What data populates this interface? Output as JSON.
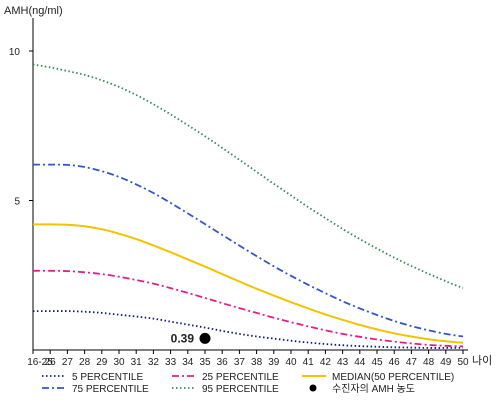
{
  "chart_data": {
    "type": "line",
    "ylabel": "AMH(ng/ml)",
    "xlabel": "나이",
    "x": [
      "16-25",
      "26",
      "27",
      "28",
      "29",
      "30",
      "31",
      "32",
      "33",
      "34",
      "35",
      "36",
      "37",
      "38",
      "39",
      "40",
      "41",
      "42",
      "43",
      "44",
      "45",
      "46",
      "47",
      "48",
      "49",
      "50"
    ],
    "y_ticks": [
      "5",
      "10"
    ],
    "ylim": [
      0,
      11
    ],
    "grid": false,
    "legend_position": "bottom",
    "series": [
      {
        "key": "p5",
        "name": "5 PERCENTILE",
        "color": "#0a1a7a",
        "dash": "dot",
        "values": [
          1.3,
          1.3,
          1.3,
          1.28,
          1.24,
          1.18,
          1.12,
          1.05,
          0.95,
          0.85,
          0.75,
          0.64,
          0.54,
          0.45,
          0.38,
          0.31,
          0.25,
          0.2,
          0.16,
          0.13,
          0.11,
          0.09,
          0.08,
          0.07,
          0.07,
          0.07
        ]
      },
      {
        "key": "p25",
        "name": "25 PERCENTILE",
        "color": "#e0208a",
        "dash": "dashdot",
        "values": [
          2.65,
          2.65,
          2.64,
          2.6,
          2.54,
          2.45,
          2.34,
          2.22,
          2.07,
          1.91,
          1.74,
          1.57,
          1.4,
          1.24,
          1.08,
          0.93,
          0.79,
          0.66,
          0.54,
          0.44,
          0.35,
          0.28,
          0.22,
          0.17,
          0.14,
          0.12
        ]
      },
      {
        "key": "p50",
        "name": "MEDIAN(50 PERCENTILE)",
        "color": "#f2c400",
        "dash": "solid",
        "values": [
          4.2,
          4.2,
          4.19,
          4.14,
          4.04,
          3.89,
          3.71,
          3.5,
          3.27,
          3.03,
          2.79,
          2.54,
          2.29,
          2.05,
          1.82,
          1.6,
          1.39,
          1.19,
          1.01,
          0.84,
          0.69,
          0.56,
          0.45,
          0.36,
          0.29,
          0.24
        ]
      },
      {
        "key": "p75",
        "name": "75 PERCENTILE",
        "color": "#3355cc",
        "dash": "dashdot",
        "values": [
          6.2,
          6.2,
          6.19,
          6.12,
          5.98,
          5.79,
          5.54,
          5.25,
          4.92,
          4.57,
          4.21,
          3.85,
          3.49,
          3.14,
          2.8,
          2.48,
          2.18,
          1.9,
          1.63,
          1.39,
          1.17,
          0.97,
          0.8,
          0.66,
          0.54,
          0.45
        ]
      },
      {
        "key": "p95",
        "name": "95 PERCENTILE",
        "color": "#2e8b57",
        "dash": "dot",
        "values": [
          9.55,
          9.45,
          9.33,
          9.2,
          9.02,
          8.8,
          8.53,
          8.22,
          7.88,
          7.52,
          7.15,
          6.76,
          6.36,
          5.96,
          5.56,
          5.17,
          4.78,
          4.41,
          4.05,
          3.71,
          3.39,
          3.09,
          2.81,
          2.55,
          2.3,
          2.07
        ]
      }
    ],
    "patient_point": {
      "name": "수진자의 AMH 농도",
      "x": "35",
      "value": 0.39,
      "label": "0.39",
      "color": "#000000"
    }
  }
}
